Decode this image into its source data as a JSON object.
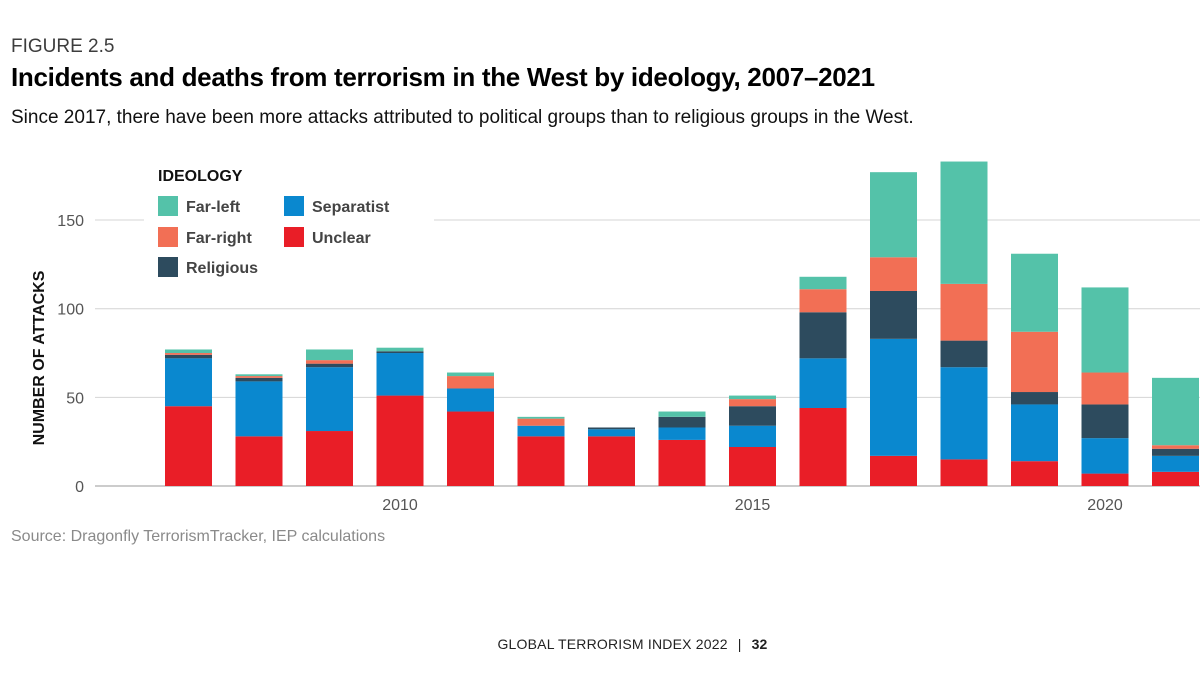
{
  "header": {
    "figure_label": "FIGURE 2.5",
    "title": "Incidents and deaths from terrorism in the West by ideology, 2007–2021",
    "subtitle": "Since 2017, there have been more attacks attributed to political groups than to religious groups in the West."
  },
  "source": "Source: Dragonfly TerrorismTracker, IEP calculations",
  "footer": {
    "publication": "GLOBAL TERRORISM INDEX 2022",
    "separator": "|",
    "page": "32"
  },
  "chart_data": {
    "type": "bar",
    "stacked": true,
    "title": "",
    "xlabel": "",
    "ylabel": "NUMBER OF ATTACKS",
    "ylim": [
      0,
      185
    ],
    "yticks": [
      0,
      50,
      100,
      150
    ],
    "xlim": [
      2006.5,
      2021.5
    ],
    "xticks": [
      2010,
      2015,
      2020
    ],
    "grid": true,
    "legend": {
      "title": "IDEOLOGY",
      "placement": "top-left"
    },
    "colors": {
      "Unclear": "#e91e27",
      "Separatist": "#0a88cf",
      "Religious": "#2d4b5e",
      "Far-right": "#f26f55",
      "Far-left": "#54c2a9"
    },
    "categories": [
      2007,
      2008,
      2009,
      2010,
      2011,
      2012,
      2013,
      2014,
      2015,
      2016,
      2017,
      2018,
      2019,
      2020,
      2021
    ],
    "series": [
      {
        "name": "Unclear",
        "values": [
          45,
          28,
          31,
          51,
          42,
          28,
          28,
          26,
          22,
          44,
          17,
          15,
          14,
          7,
          8
        ]
      },
      {
        "name": "Separatist",
        "values": [
          27,
          31,
          36,
          24,
          13,
          6,
          4,
          7,
          12,
          28,
          66,
          52,
          32,
          20,
          9
        ]
      },
      {
        "name": "Religious",
        "values": [
          2,
          2,
          2,
          1,
          0,
          0,
          1,
          6,
          11,
          26,
          27,
          15,
          7,
          19,
          4
        ]
      },
      {
        "name": "Far-right",
        "values": [
          1,
          1,
          2,
          0,
          7,
          4,
          0,
          0,
          4,
          13,
          19,
          32,
          34,
          18,
          2
        ]
      },
      {
        "name": "Far-left",
        "values": [
          2,
          1,
          6,
          2,
          2,
          1,
          0,
          3,
          2,
          7,
          48,
          69,
          44,
          48,
          38
        ]
      }
    ]
  }
}
